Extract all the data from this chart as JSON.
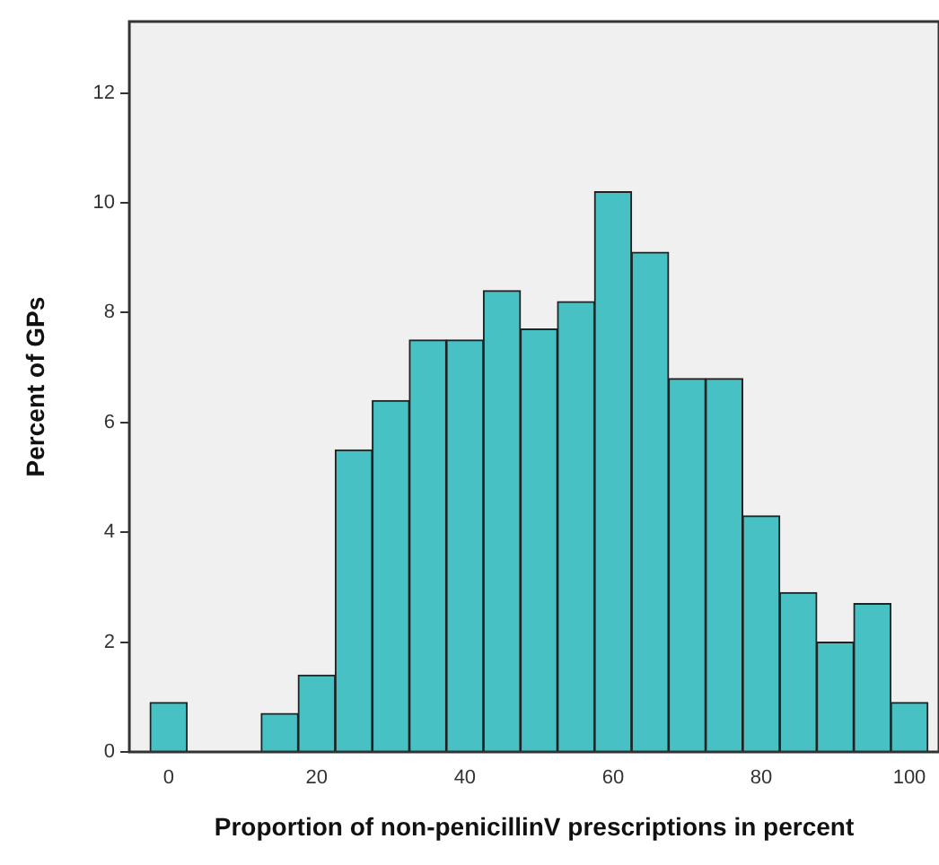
{
  "chart_data": {
    "type": "histogram",
    "xlabel": "Proportion of non-penicillinV prescriptions in percent",
    "ylabel": "Percent of GPs",
    "bins": [
      -2.5,
      2.5,
      7.5,
      12.5,
      17.5,
      22.5,
      27.5,
      32.5,
      37.5,
      42.5,
      47.5,
      52.5,
      57.5,
      62.5,
      67.5,
      72.5,
      77.5,
      82.5,
      87.5,
      92.5,
      97.5,
      102.5
    ],
    "values": [
      0.9,
      0,
      0,
      0.7,
      1.4,
      5.5,
      6.4,
      7.5,
      7.5,
      8.4,
      7.7,
      8.2,
      10.2,
      9.1,
      6.8,
      6.8,
      4.3,
      2.9,
      2.0,
      2.7,
      0.9
    ],
    "color": "#48c1c4",
    "xlim": [
      -5.3,
      104
    ],
    "xticks": [
      0,
      20,
      40,
      60,
      80,
      100
    ],
    "ylim": [
      0,
      13.3
    ],
    "yticks": [
      0,
      2,
      4,
      6,
      8,
      10,
      12
    ],
    "grid": false,
    "legend": false
  }
}
